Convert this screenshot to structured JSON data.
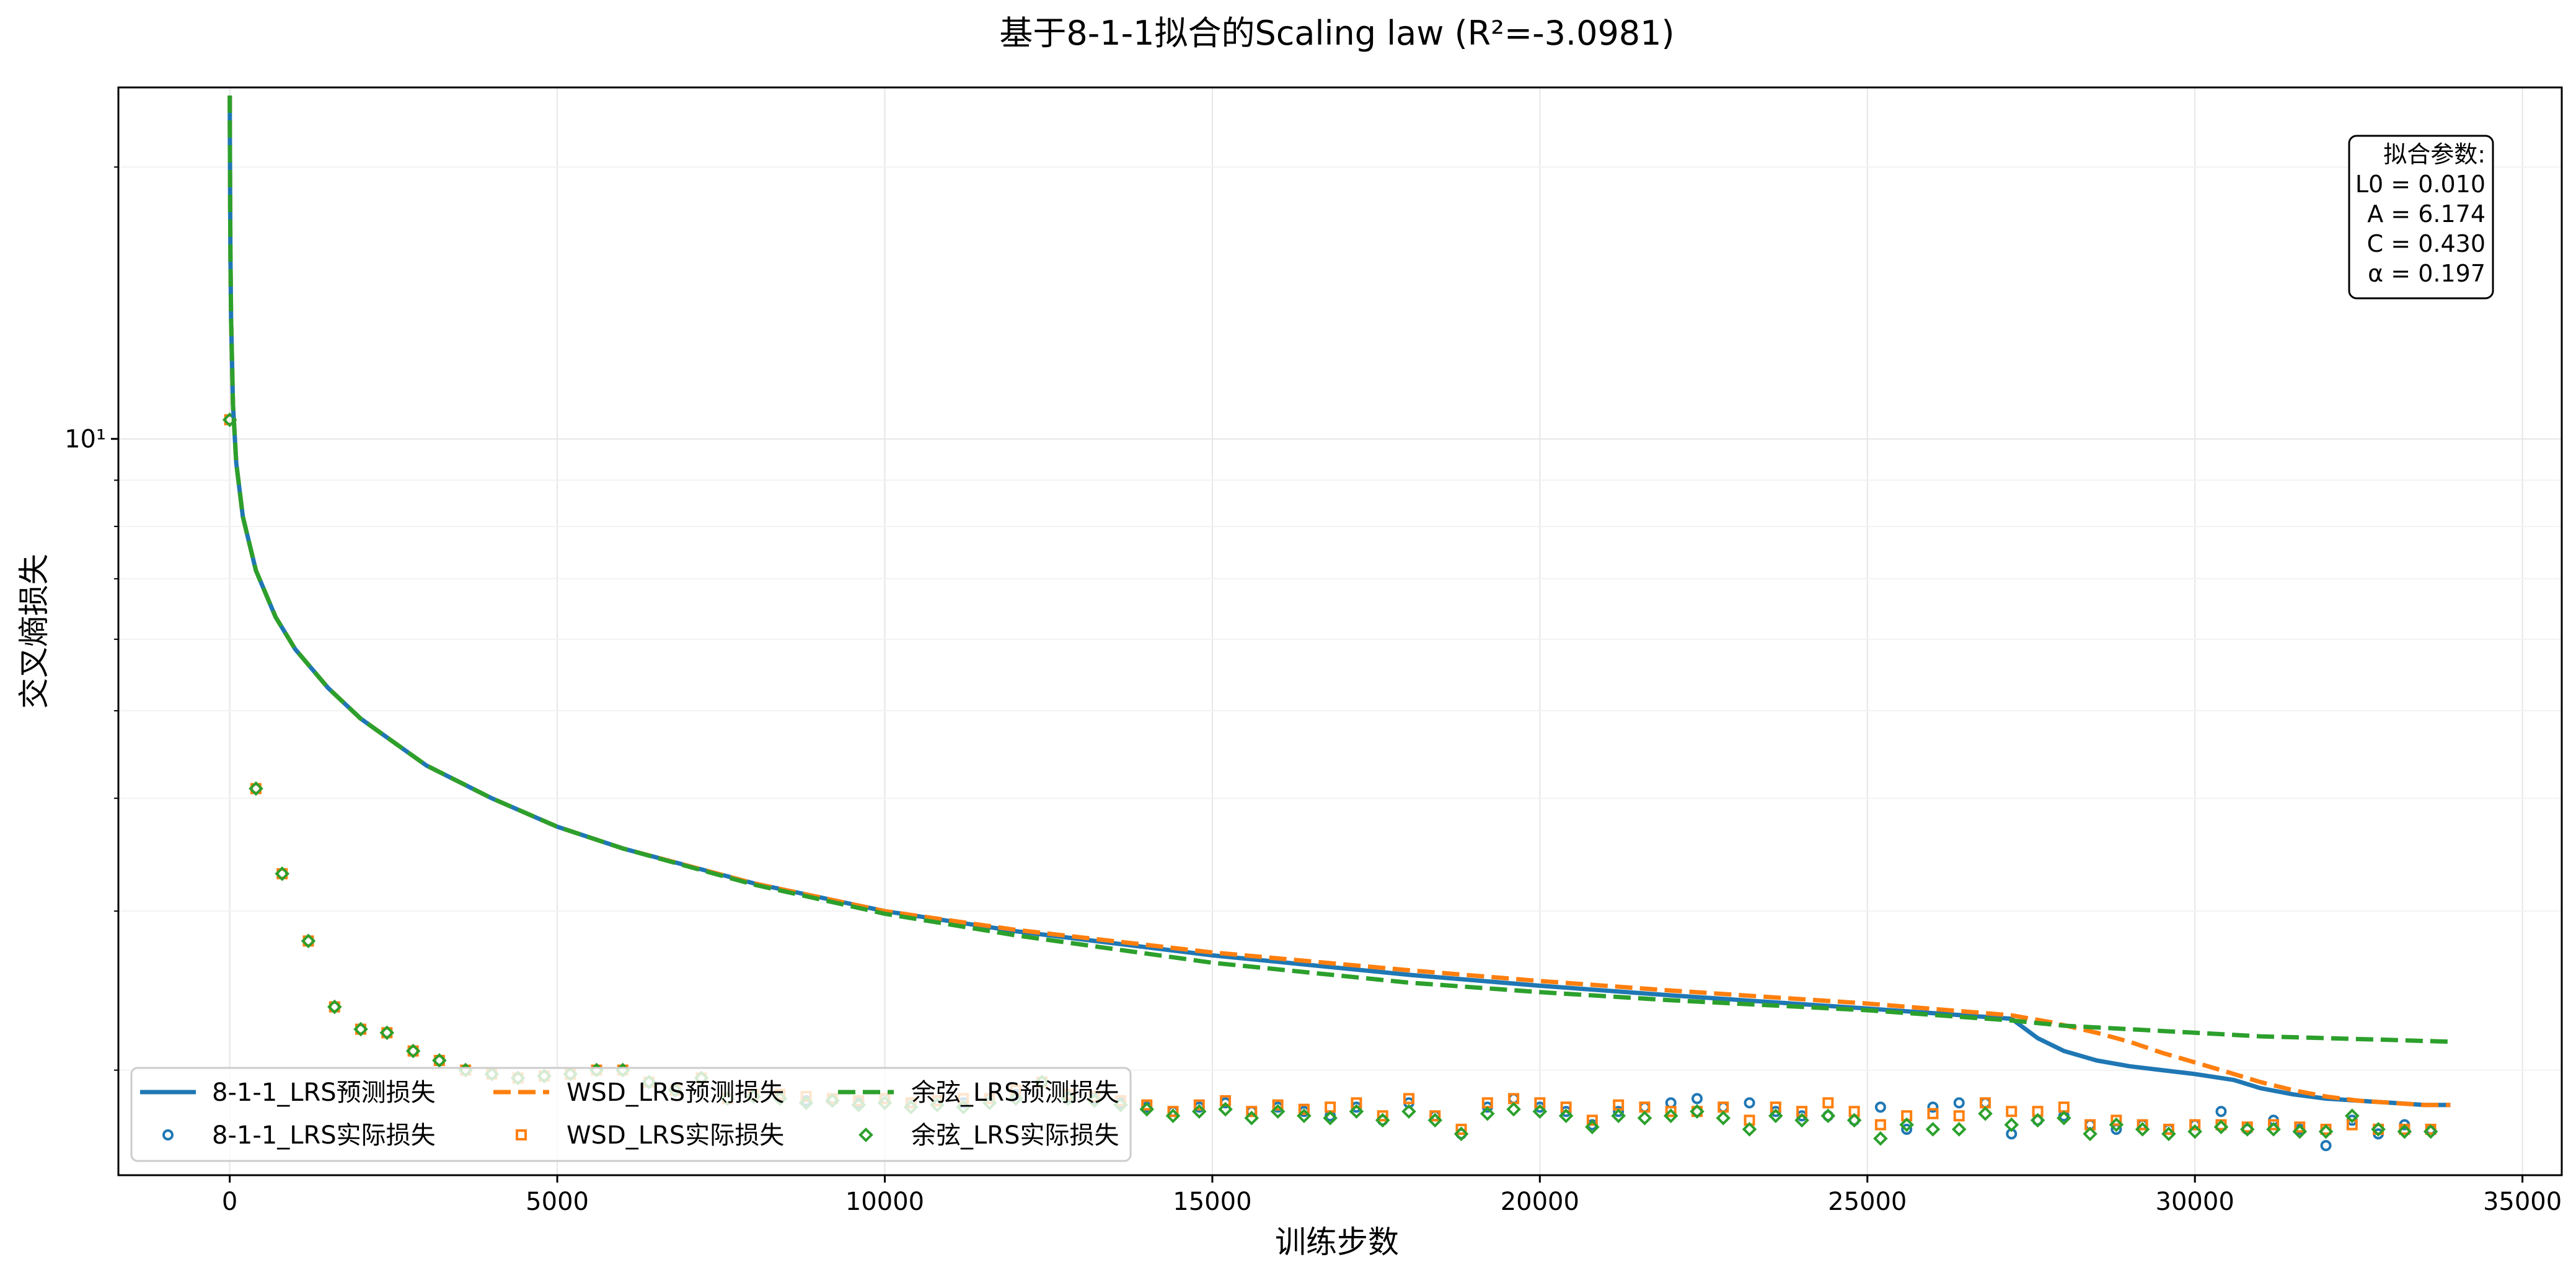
{
  "chart_data": {
    "type": "line",
    "title": "基于8-1-1拟合的Scaling law (R²=-3.0981)",
    "xlabel": "训练步数",
    "ylabel": "交叉熵损失",
    "x_ticks": [
      0,
      5000,
      10000,
      15000,
      20000,
      25000,
      30000,
      35000
    ],
    "x_tick_labels": [
      "0",
      "5000",
      "10000",
      "15000",
      "20000",
      "25000",
      "30000",
      "35000"
    ],
    "xlim": [
      -1700,
      35600
    ],
    "yscale": "log",
    "ylim": [
      1.53,
      24.5
    ],
    "y_ticks": [
      10
    ],
    "y_tick_labels": [
      "10¹"
    ],
    "grid": true,
    "legend_position": "lower-left",
    "legend_columns": 3,
    "annotation": {
      "position": "top-right",
      "lines": [
        "拟合参数:",
        "L0 = 0.010",
        "A = 6.174",
        "C = 0.430",
        "α = 0.197"
      ]
    },
    "fit_params": {
      "L0": 0.01,
      "A": 6.174,
      "C": 0.43,
      "alpha": 0.197
    },
    "series": [
      {
        "name": "8-1-1_LRS预测损失",
        "kind": "line",
        "style": "solid",
        "color": "#1f77b4",
        "x": [
          0,
          1,
          5,
          10,
          20,
          50,
          100,
          200,
          400,
          700,
          1000,
          1500,
          2000,
          3000,
          4000,
          5000,
          6000,
          8000,
          10000,
          12000,
          15000,
          18000,
          20000,
          22000,
          25000,
          27200,
          27600,
          28000,
          28500,
          29000,
          29500,
          30000,
          30600,
          31000,
          31500,
          32000,
          32500,
          33000,
          33500,
          33900
        ],
        "y": [
          24.0,
          22.5,
          19.0,
          16.2,
          13.6,
          10.9,
          9.4,
          8.2,
          7.15,
          6.35,
          5.85,
          5.3,
          4.9,
          4.35,
          4.0,
          3.72,
          3.52,
          3.22,
          3.0,
          2.85,
          2.68,
          2.55,
          2.48,
          2.42,
          2.34,
          2.28,
          2.17,
          2.1,
          2.05,
          2.02,
          2.0,
          1.98,
          1.95,
          1.91,
          1.88,
          1.86,
          1.85,
          1.84,
          1.83,
          1.83
        ]
      },
      {
        "name": "WSD_LRS预测损失",
        "kind": "line",
        "style": "dashed",
        "color": "#ff7f0e",
        "x": [
          0,
          1,
          5,
          10,
          20,
          50,
          100,
          200,
          400,
          700,
          1000,
          1500,
          2000,
          3000,
          4000,
          5000,
          6000,
          8000,
          10000,
          12000,
          15000,
          18000,
          20000,
          22000,
          25000,
          27200,
          27800,
          28500,
          29000,
          29500,
          30000,
          30500,
          31000,
          31500,
          32000,
          32500,
          33000,
          33500,
          33900
        ],
        "y": [
          24.0,
          22.5,
          19.0,
          16.2,
          13.6,
          10.9,
          9.4,
          8.2,
          7.15,
          6.35,
          5.85,
          5.3,
          4.9,
          4.35,
          4.0,
          3.72,
          3.52,
          3.22,
          3.0,
          2.86,
          2.7,
          2.58,
          2.51,
          2.45,
          2.37,
          2.3,
          2.26,
          2.2,
          2.15,
          2.09,
          2.04,
          1.99,
          1.94,
          1.9,
          1.87,
          1.85,
          1.84,
          1.83,
          1.83
        ]
      },
      {
        "name": "余弦_LRS预测损失",
        "kind": "line",
        "style": "dashed",
        "color": "#2ca02c",
        "x": [
          0,
          1,
          5,
          10,
          20,
          50,
          100,
          200,
          400,
          700,
          1000,
          1500,
          2000,
          3000,
          4000,
          5000,
          6000,
          8000,
          10000,
          12000,
          15000,
          18000,
          20000,
          22000,
          25000,
          27200,
          28000,
          29000,
          30000,
          31000,
          32000,
          33000,
          33900
        ],
        "y": [
          24.0,
          22.5,
          19.0,
          16.2,
          13.6,
          10.9,
          9.4,
          8.2,
          7.15,
          6.35,
          5.85,
          5.3,
          4.9,
          4.35,
          4.0,
          3.72,
          3.52,
          3.21,
          2.98,
          2.82,
          2.63,
          2.5,
          2.44,
          2.39,
          2.33,
          2.27,
          2.24,
          2.22,
          2.2,
          2.18,
          2.17,
          2.16,
          2.15
        ]
      },
      {
        "name": "8-1-1_LRS实际损失",
        "kind": "scatter",
        "marker": "circle",
        "color": "#1f77b4",
        "x": [
          0,
          400,
          800,
          1200,
          1600,
          2000,
          2400,
          2800,
          3200,
          3600,
          4000,
          4400,
          4800,
          5200,
          5600,
          6000,
          6400,
          6800,
          7200,
          7600,
          8000,
          8400,
          8800,
          9200,
          9600,
          10000,
          10400,
          10800,
          11200,
          11600,
          12000,
          12400,
          12800,
          13200,
          13600,
          14000,
          14400,
          14800,
          15200,
          15600,
          16000,
          16400,
          16800,
          17200,
          17600,
          18000,
          18400,
          18800,
          19200,
          19600,
          20000,
          20400,
          20800,
          21200,
          21600,
          22000,
          22400,
          22800,
          23200,
          23600,
          24000,
          24400,
          24800,
          25200,
          25600,
          26000,
          26400,
          26800,
          27200,
          27600,
          28000,
          28400,
          28800,
          29200,
          29600,
          30000,
          30400,
          30800,
          31200,
          31600,
          32000,
          32400,
          32800,
          33200,
          33600
        ],
        "y": [
          10.5,
          4.1,
          3.3,
          2.78,
          2.35,
          2.22,
          2.2,
          2.1,
          2.05,
          2.0,
          1.98,
          1.96,
          1.97,
          1.98,
          2.0,
          2.0,
          1.94,
          1.9,
          1.96,
          1.86,
          1.88,
          1.87,
          1.85,
          1.86,
          1.84,
          1.86,
          1.84,
          1.85,
          1.84,
          1.86,
          1.88,
          1.94,
          1.87,
          1.86,
          1.84,
          1.82,
          1.8,
          1.82,
          1.84,
          1.8,
          1.82,
          1.8,
          1.78,
          1.82,
          1.76,
          1.84,
          1.78,
          1.7,
          1.82,
          1.86,
          1.82,
          1.8,
          1.74,
          1.8,
          1.82,
          1.84,
          1.86,
          1.82,
          1.84,
          1.8,
          1.78,
          1.78,
          1.76,
          1.82,
          1.72,
          1.82,
          1.84,
          1.84,
          1.7,
          1.76,
          1.78,
          1.74,
          1.72,
          1.74,
          1.72,
          1.74,
          1.8,
          1.72,
          1.76,
          1.72,
          1.65,
          1.76,
          1.7,
          1.74,
          1.72
        ]
      },
      {
        "name": "WSD_LRS实际损失",
        "kind": "scatter",
        "marker": "square",
        "color": "#ff7f0e",
        "x": [
          0,
          400,
          800,
          1200,
          1600,
          2000,
          2400,
          2800,
          3200,
          3600,
          4000,
          4400,
          4800,
          5200,
          5600,
          6000,
          6400,
          6800,
          7200,
          7600,
          8000,
          8400,
          8800,
          9200,
          9600,
          10000,
          10400,
          10800,
          11200,
          11600,
          12000,
          12400,
          12800,
          13200,
          13600,
          14000,
          14400,
          14800,
          15200,
          15600,
          16000,
          16400,
          16800,
          17200,
          17600,
          18000,
          18400,
          18800,
          19200,
          19600,
          20000,
          20400,
          20800,
          21200,
          21600,
          22000,
          22400,
          22800,
          23200,
          23600,
          24000,
          24400,
          24800,
          25200,
          25600,
          26000,
          26400,
          26800,
          27200,
          27600,
          28000,
          28400,
          28800,
          29200,
          29600,
          30000,
          30400,
          30800,
          31200,
          31600,
          32000,
          32400,
          32800,
          33200,
          33600
        ],
        "y": [
          10.5,
          4.1,
          3.3,
          2.78,
          2.35,
          2.22,
          2.2,
          2.1,
          2.05,
          2.0,
          1.98,
          1.96,
          1.97,
          1.98,
          2.0,
          2.0,
          1.94,
          1.9,
          1.96,
          1.86,
          1.88,
          1.88,
          1.87,
          1.86,
          1.85,
          1.86,
          1.84,
          1.85,
          1.86,
          1.86,
          1.9,
          1.94,
          1.88,
          1.87,
          1.85,
          1.83,
          1.8,
          1.83,
          1.85,
          1.8,
          1.83,
          1.81,
          1.82,
          1.84,
          1.78,
          1.86,
          1.78,
          1.72,
          1.84,
          1.86,
          1.84,
          1.82,
          1.76,
          1.83,
          1.82,
          1.8,
          1.8,
          1.82,
          1.76,
          1.82,
          1.8,
          1.84,
          1.8,
          1.74,
          1.78,
          1.79,
          1.78,
          1.84,
          1.8,
          1.8,
          1.82,
          1.74,
          1.76,
          1.74,
          1.72,
          1.74,
          1.74,
          1.73,
          1.74,
          1.73,
          1.72,
          1.74,
          1.72,
          1.72,
          1.72
        ]
      },
      {
        "name": "余弦_LRS实际损失",
        "kind": "scatter",
        "marker": "diamond",
        "color": "#2ca02c",
        "x": [
          0,
          400,
          800,
          1200,
          1600,
          2000,
          2400,
          2800,
          3200,
          3600,
          4000,
          4400,
          4800,
          5200,
          5600,
          6000,
          6400,
          6800,
          7200,
          7600,
          8000,
          8400,
          8800,
          9200,
          9600,
          10000,
          10400,
          10800,
          11200,
          11600,
          12000,
          12400,
          12800,
          13200,
          13600,
          14000,
          14400,
          14800,
          15200,
          15600,
          16000,
          16400,
          16800,
          17200,
          17600,
          18000,
          18400,
          18800,
          19200,
          19600,
          20000,
          20400,
          20800,
          21200,
          21600,
          22000,
          22400,
          22800,
          23200,
          23600,
          24000,
          24400,
          24800,
          25200,
          25600,
          26000,
          26400,
          26800,
          27200,
          27600,
          28000,
          28400,
          28800,
          29200,
          29600,
          30000,
          30400,
          30800,
          31200,
          31600,
          32000,
          32400,
          32800,
          33200,
          33600
        ],
        "y": [
          10.5,
          4.1,
          3.3,
          2.78,
          2.35,
          2.22,
          2.2,
          2.1,
          2.05,
          2.0,
          1.98,
          1.96,
          1.97,
          1.98,
          2.0,
          2.0,
          1.94,
          1.9,
          1.96,
          1.86,
          1.87,
          1.86,
          1.84,
          1.85,
          1.83,
          1.84,
          1.82,
          1.83,
          1.82,
          1.84,
          1.86,
          1.94,
          1.86,
          1.85,
          1.83,
          1.81,
          1.78,
          1.8,
          1.81,
          1.77,
          1.8,
          1.78,
          1.77,
          1.8,
          1.76,
          1.8,
          1.76,
          1.7,
          1.79,
          1.81,
          1.8,
          1.78,
          1.73,
          1.78,
          1.77,
          1.78,
          1.8,
          1.77,
          1.72,
          1.78,
          1.76,
          1.78,
          1.76,
          1.68,
          1.74,
          1.72,
          1.72,
          1.79,
          1.74,
          1.76,
          1.77,
          1.7,
          1.74,
          1.72,
          1.7,
          1.71,
          1.73,
          1.72,
          1.72,
          1.71,
          1.71,
          1.78,
          1.72,
          1.71,
          1.71
        ]
      }
    ]
  }
}
